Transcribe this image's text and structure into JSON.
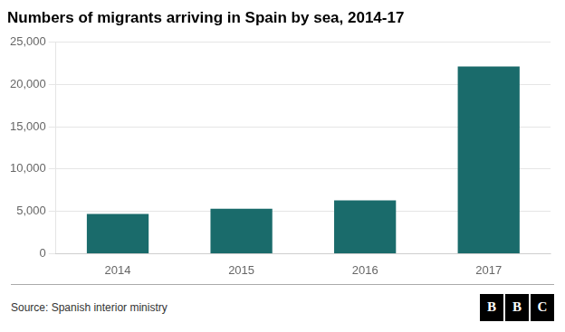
{
  "chart_data": {
    "type": "bar",
    "title": "Numbers of migrants arriving in Spain by sea, 2014-17",
    "categories": [
      "2014",
      "2015",
      "2016",
      "2017"
    ],
    "values": [
      4700,
      5300,
      6300,
      22100
    ],
    "color": "#1a6b6b",
    "ylim": [
      0,
      25000
    ],
    "yticks": [
      0,
      {
        "value": 5000,
        "label": "5,000"
      },
      {
        "value": 10000,
        "label": "10,000"
      },
      {
        "value": 15000,
        "label": "15,000"
      },
      {
        "value": 20000,
        "label": "20,000"
      },
      {
        "value": 25000,
        "label": "25,000"
      }
    ],
    "grid": true,
    "source": "Source: Spanish interior ministry",
    "annotations": [
      "B",
      "B",
      "C"
    ]
  }
}
